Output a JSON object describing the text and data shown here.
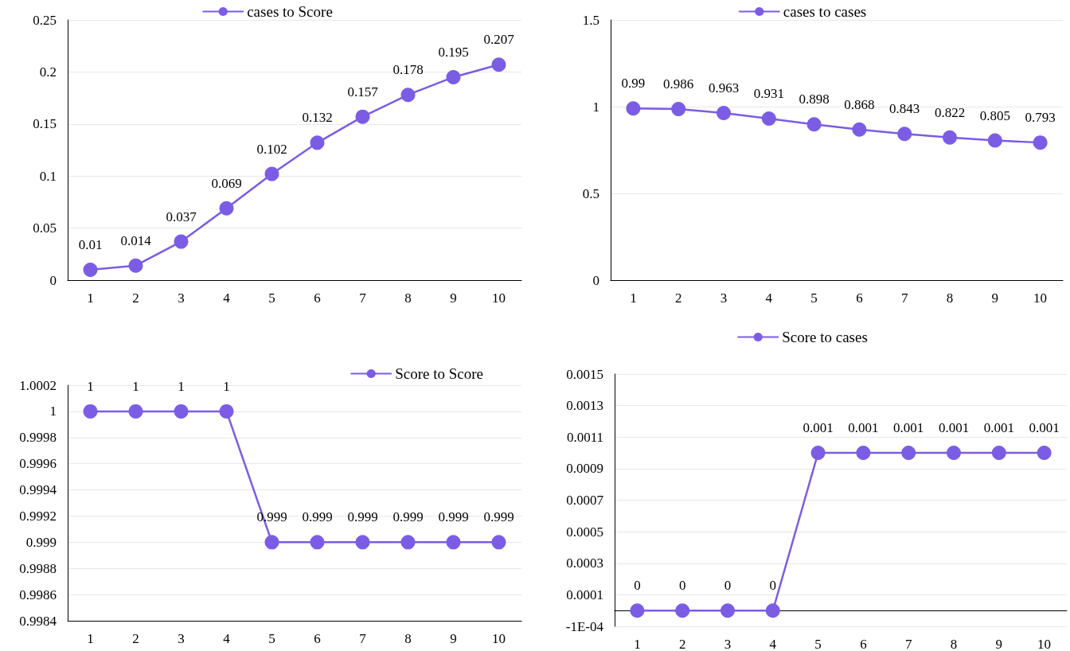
{
  "chart_data": [
    {
      "type": "line",
      "categories": [
        "1",
        "2",
        "3",
        "4",
        "5",
        "6",
        "7",
        "8",
        "9",
        "10"
      ],
      "series": [
        {
          "name": "cases to Score",
          "color": "#7b5ce5",
          "values": [
            0.01,
            0.014,
            0.037,
            0.069,
            0.102,
            0.132,
            0.157,
            0.178,
            0.195,
            0.207
          ]
        }
      ],
      "ylim": [
        0,
        0.25
      ],
      "yticks": [
        0,
        0.05,
        0.1,
        0.15,
        0.2,
        0.25
      ],
      "grid": "y",
      "legend": "top",
      "marker": "circle",
      "line_style": "solid",
      "data_labels": true
    },
    {
      "type": "line",
      "categories": [
        "1",
        "2",
        "3",
        "4",
        "5",
        "6",
        "7",
        "8",
        "9",
        "10"
      ],
      "series": [
        {
          "name": "cases to cases",
          "color": "#7b5ce5",
          "values": [
            0.99,
            0.986,
            0.963,
            0.931,
            0.898,
            0.868,
            0.843,
            0.822,
            0.805,
            0.793
          ]
        }
      ],
      "ylim": [
        0,
        1.5
      ],
      "yticks": [
        0,
        0.5,
        1,
        1.5
      ],
      "grid": "y",
      "legend": "top",
      "marker": "circle",
      "line_style": "solid",
      "data_labels": true
    },
    {
      "type": "line",
      "categories": [
        "1",
        "2",
        "3",
        "4",
        "5",
        "6",
        "7",
        "8",
        "9",
        "10"
      ],
      "series": [
        {
          "name": "Score to Score",
          "color": "#7b5ce5",
          "values": [
            1,
            1,
            1,
            1,
            0.999,
            0.999,
            0.999,
            0.999,
            0.999,
            0.999
          ]
        }
      ],
      "ylim": [
        0.9984,
        1.0002
      ],
      "yticks": [
        0.9984,
        0.9986,
        0.9988,
        0.999,
        0.9992,
        0.9994,
        0.9996,
        0.9998,
        1,
        1.0002
      ],
      "grid": "y",
      "legend": "top right",
      "marker": "circle",
      "line_style": "solid",
      "data_labels": true
    },
    {
      "type": "line",
      "categories": [
        "1",
        "2",
        "3",
        "4",
        "5",
        "6",
        "7",
        "8",
        "9",
        "10"
      ],
      "series": [
        {
          "name": "Score to cases",
          "color": "#7b5ce5",
          "values": [
            0,
            0,
            0,
            0,
            0.001,
            0.001,
            0.001,
            0.001,
            0.001,
            0.001
          ]
        }
      ],
      "ylim": [
        -0.0001,
        0.0015
      ],
      "yticks": [
        {
          "value": -0.0001,
          "label": "-1E-04"
        },
        0.0001,
        0.0003,
        0.0005,
        0.0007,
        0.0009,
        0.0011,
        0.0013,
        0.0015
      ],
      "grid": "y",
      "legend": "top",
      "marker": "circle",
      "line_style": "solid",
      "data_labels": true
    }
  ]
}
